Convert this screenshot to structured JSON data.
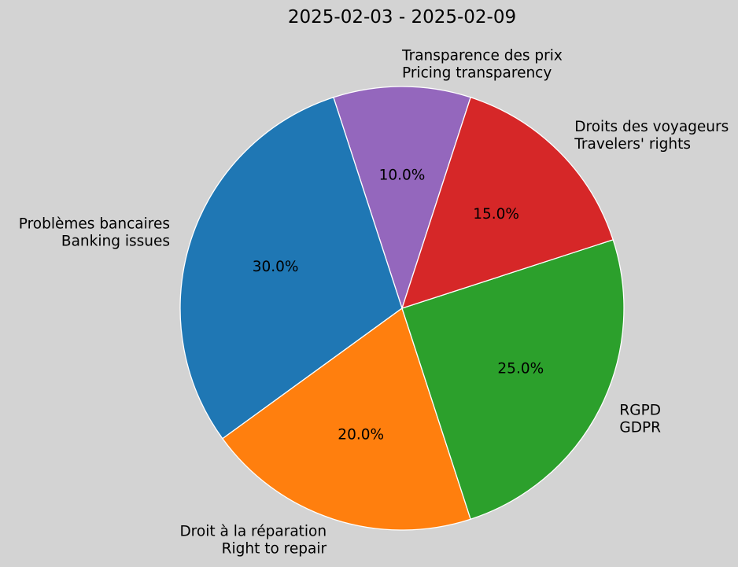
{
  "chart_data": {
    "type": "pie",
    "title": "2025-02-03 - 2025-02-09",
    "slices": [
      {
        "label": [
          "Transparence des prix",
          "Pricing transparency"
        ],
        "value": 10.0,
        "pct_label": "10.0%",
        "color": "#9467bd"
      },
      {
        "label": [
          "Problèmes bancaires",
          "Banking issues"
        ],
        "value": 30.0,
        "pct_label": "30.0%",
        "color": "#1f77b4"
      },
      {
        "label": [
          "Droit à la réparation",
          "Right to repair"
        ],
        "value": 20.0,
        "pct_label": "20.0%",
        "color": "#ff7f0e"
      },
      {
        "label": [
          "RGPD",
          "GDPR"
        ],
        "value": 25.0,
        "pct_label": "25.0%",
        "color": "#2ca02c"
      },
      {
        "label": [
          "Droits des voyageurs",
          "Travelers' rights"
        ],
        "value": 15.0,
        "pct_label": "15.0%",
        "color": "#d62728"
      }
    ],
    "start_angle_deg": 72,
    "direction": "counterclockwise",
    "edge_color": "#ffffff",
    "background": "#d3d3d3"
  }
}
